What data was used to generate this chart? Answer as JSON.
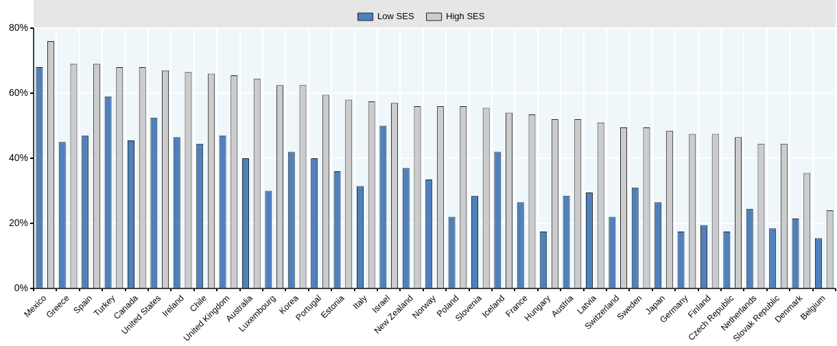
{
  "chart_data": {
    "type": "bar",
    "categories": [
      "Mexico",
      "Greece",
      "Spain",
      "Turkey",
      "Canada",
      "United States",
      "Ireland",
      "Chile",
      "United Kingdom",
      "Australia",
      "Luxembourg",
      "Korea",
      "Portugal",
      "Estonia",
      "Italy",
      "Israel",
      "New Zealand",
      "Norway",
      "Poland",
      "Slovenia",
      "Iceland",
      "France",
      "Hungary",
      "Austria",
      "Latvia",
      "Switzerland",
      "Sweden",
      "Japan",
      "Germany",
      "Finland",
      "Czech Republic",
      "Netherlands",
      "Slovak Republic",
      "Denmark",
      "Belgium"
    ],
    "series": [
      {
        "name": "Low SES",
        "color": "#4e81bd",
        "values": [
          68,
          45,
          47,
          59,
          45.5,
          52.5,
          46.5,
          44.5,
          47,
          40,
          30,
          42,
          40,
          36,
          31.5,
          50,
          37,
          33.5,
          22,
          28.5,
          42,
          26.5,
          17.5,
          28.5,
          29.5,
          22,
          31,
          26.5,
          17.5,
          19.5,
          17.5,
          24.5,
          18.5,
          21.5,
          15.5
        ]
      },
      {
        "name": "High SES",
        "color": "#cccccc",
        "values": [
          76,
          69,
          69,
          68,
          68,
          67,
          66.5,
          66,
          65.5,
          64.5,
          62.5,
          62.5,
          59.5,
          58,
          57.5,
          57,
          56,
          56,
          56,
          55.5,
          54,
          53.5,
          52,
          52,
          51,
          49.5,
          49.5,
          48.5,
          47.5,
          47.5,
          46.5,
          44.5,
          44.5,
          35.5,
          24
        ]
      }
    ],
    "ylim": [
      0,
      80
    ],
    "yticks": [
      {
        "value": 0,
        "label": "0%"
      },
      {
        "value": 20,
        "label": "20%"
      },
      {
        "value": 40,
        "label": "40%"
      },
      {
        "value": 60,
        "label": "60%"
      },
      {
        "value": 80,
        "label": "80%"
      }
    ],
    "grid": true,
    "legend": "top"
  }
}
